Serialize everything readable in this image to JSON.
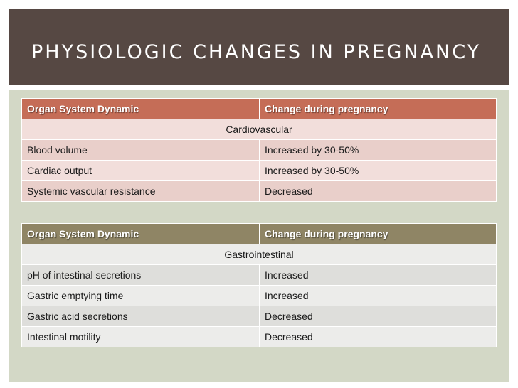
{
  "slide": {
    "title": "PHYSIOLOGIC CHANGES IN PREGNANCY"
  },
  "tables": [
    {
      "header": [
        "Organ System Dynamic",
        "Change during pregnancy"
      ],
      "category": "Cardiovascular",
      "rows": [
        [
          "Blood volume",
          "Increased by 30-50%"
        ],
        [
          "Cardiac output",
          "Increased by 30-50%"
        ],
        [
          "Systemic vascular resistance",
          "Decreased"
        ]
      ]
    },
    {
      "header": [
        "Organ System Dynamic",
        "Change during pregnancy"
      ],
      "category": "Gastrointestinal",
      "rows": [
        [
          "pH of intestinal secretions",
          "Increased"
        ],
        [
          "Gastric emptying time",
          "Increased"
        ],
        [
          "Gastric acid secretions",
          "Decreased"
        ],
        [
          "Intestinal motility",
          "Decreased"
        ]
      ]
    }
  ],
  "colors": {
    "title_bar": "#564843",
    "content_bg": "#d3d8c6",
    "table1_header": "#c56d57",
    "table2_header": "#8f8565"
  }
}
